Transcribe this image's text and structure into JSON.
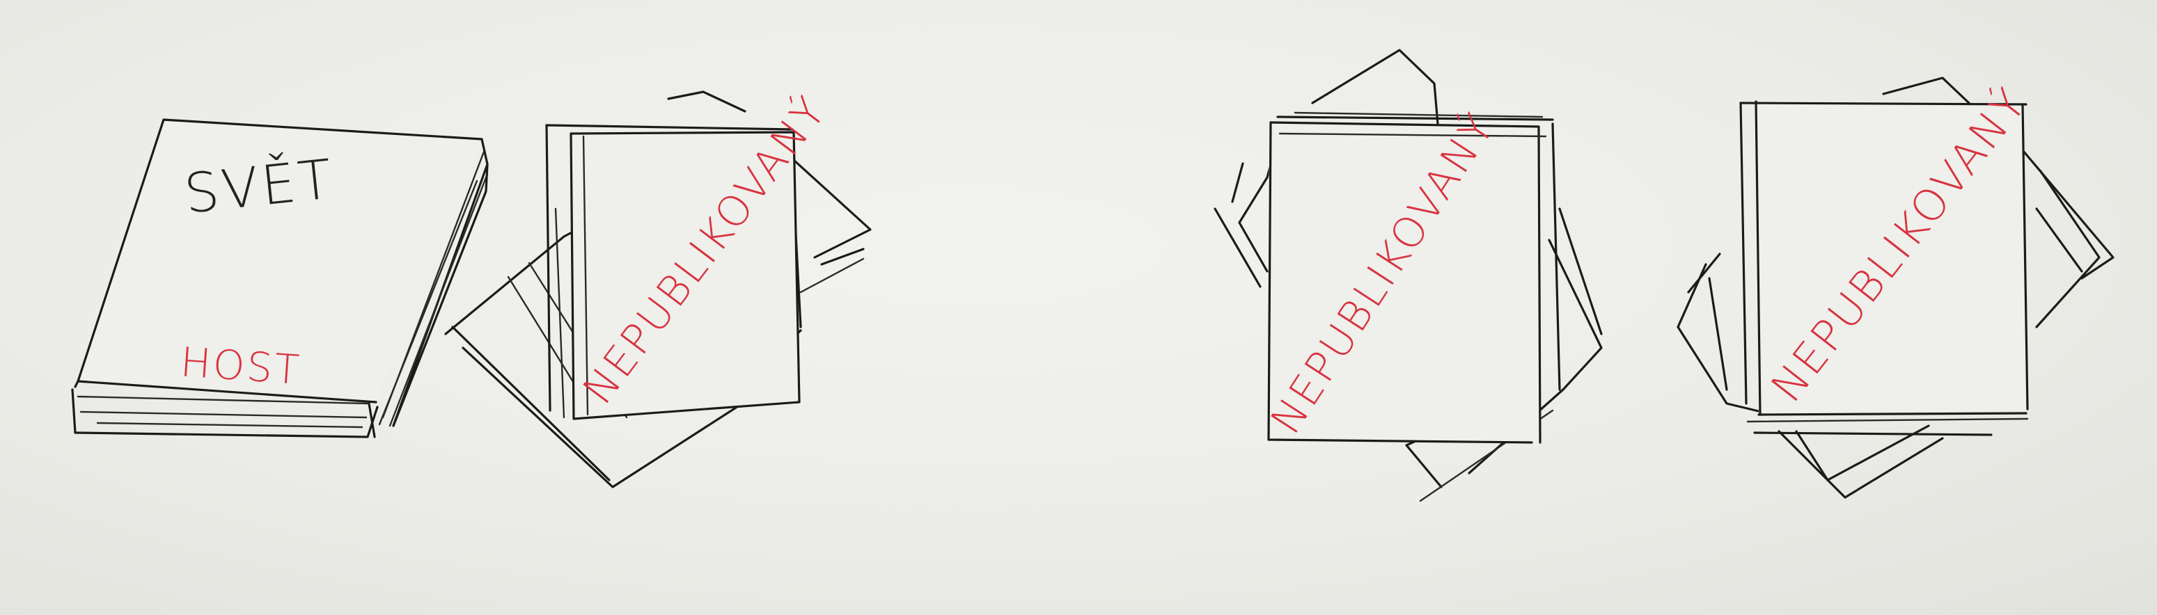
{
  "colors": {
    "paper": "#ebebe7",
    "ink": "#1b1b1b",
    "red_ink": "#d8333f"
  },
  "books": [
    {
      "kind": "published-book",
      "title": "SVĚT",
      "publisher": "HOST"
    },
    {
      "kind": "manuscript-stack",
      "label": "NEPUBLIKOVANÝ"
    },
    {
      "kind": "manuscript-stack",
      "label": "NEPUBLIKOVANÝ"
    },
    {
      "kind": "manuscript-stack",
      "label": "NEPUBLIKOVANÝ"
    }
  ]
}
